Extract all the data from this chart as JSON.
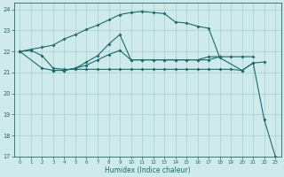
{
  "background_color": "#ceeaea",
  "grid_color": "#aacece",
  "line_color": "#1a6b6b",
  "xlabel": "Humidex (Indice chaleur)",
  "xlim": [
    -0.5,
    23.5
  ],
  "ylim": [
    17,
    24.3
  ],
  "yticks": [
    17,
    18,
    19,
    20,
    21,
    22,
    23,
    24
  ],
  "xticks": [
    0,
    1,
    2,
    3,
    4,
    5,
    6,
    7,
    8,
    9,
    10,
    11,
    12,
    13,
    14,
    15,
    16,
    17,
    18,
    19,
    20,
    21,
    22,
    23
  ],
  "curve1_x": [
    0,
    1,
    2,
    3,
    4,
    5,
    6,
    7,
    8,
    9,
    10,
    11,
    12,
    13,
    14,
    15,
    16,
    17,
    18,
    20,
    21,
    22,
    23
  ],
  "curve1_y": [
    22.0,
    22.1,
    22.2,
    22.3,
    22.6,
    22.8,
    23.05,
    23.25,
    23.5,
    23.75,
    23.85,
    23.9,
    23.85,
    23.8,
    23.4,
    23.35,
    23.2,
    23.1,
    21.7,
    21.1,
    21.45,
    18.75,
    17.0
  ],
  "curve2_x": [
    0,
    1,
    2,
    3,
    4,
    5,
    6,
    7,
    8,
    9,
    10,
    11,
    12,
    13,
    14,
    15,
    16,
    17,
    18,
    19,
    20,
    21,
    22
  ],
  "curve2_y": [
    22.0,
    22.05,
    21.8,
    21.2,
    21.15,
    21.15,
    21.15,
    21.15,
    21.15,
    21.15,
    21.15,
    21.15,
    21.15,
    21.15,
    21.15,
    21.15,
    21.15,
    21.15,
    21.15,
    21.15,
    21.1,
    21.45,
    21.5
  ],
  "curve3_x": [
    0,
    2,
    3,
    4,
    5,
    6,
    7,
    8,
    9,
    10,
    11,
    12,
    13,
    14,
    15,
    16,
    17,
    18
  ],
  "curve3_y": [
    22.0,
    21.2,
    21.1,
    21.1,
    21.2,
    21.35,
    21.6,
    21.85,
    22.05,
    21.6,
    21.6,
    21.6,
    21.6,
    21.6,
    21.6,
    21.6,
    21.75,
    21.75
  ],
  "curve4_x": [
    3,
    4,
    5,
    6,
    7,
    8,
    9,
    10,
    11,
    12,
    13,
    14,
    15,
    16,
    17,
    18,
    19,
    20,
    21
  ],
  "curve4_y": [
    21.1,
    21.1,
    21.2,
    21.5,
    21.8,
    22.35,
    22.8,
    21.6,
    21.6,
    21.6,
    21.6,
    21.6,
    21.6,
    21.6,
    21.6,
    21.75,
    21.75,
    21.75,
    21.75
  ]
}
